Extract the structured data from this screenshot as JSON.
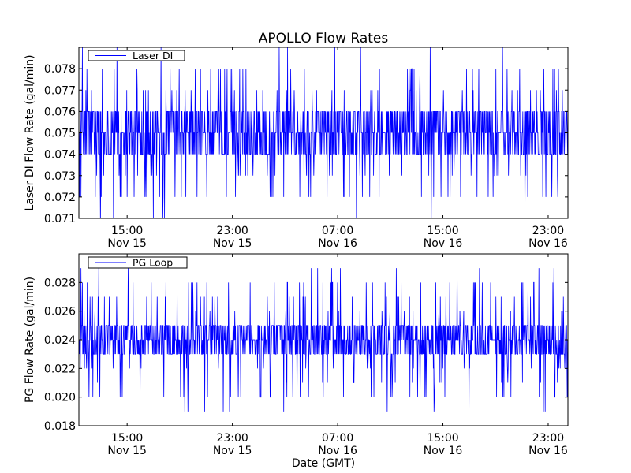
{
  "figure": {
    "title": "APOLLO Flow Rates",
    "xlabel": "Date (GMT)"
  },
  "chart_data": [
    {
      "type": "line",
      "title": "APOLLO Flow Rates",
      "ylabel": "Laser DI Flow Rate (gal/min)",
      "xlabel": "",
      "x_ticks": [
        {
          "time": "15:00",
          "date": "Nov 15"
        },
        {
          "time": "23:00",
          "date": "Nov 15"
        },
        {
          "time": "07:00",
          "date": "Nov 16"
        },
        {
          "time": "15:00",
          "date": "Nov 16"
        },
        {
          "time": "23:00",
          "date": "Nov 16"
        }
      ],
      "xlim": [
        "Nov 15 11:20",
        "Nov 17 00:30"
      ],
      "ylim": [
        0.071,
        0.079
      ],
      "y_ticks": [
        "0.071",
        "0.072",
        "0.073",
        "0.074",
        "0.075",
        "0.076",
        "0.077",
        "0.078"
      ],
      "legend": {
        "placement": "top-left",
        "entries": [
          "Laser DI"
        ]
      },
      "grid": false,
      "series": [
        {
          "name": "Laser DI",
          "color": "#0000ff",
          "typical_range": [
            0.075,
            0.076
          ],
          "frequent_values": [
            0.074,
            0.075,
            0.076
          ],
          "occasional_values": [
            0.072,
            0.073,
            0.077,
            0.078
          ],
          "extreme_values": [
            0.071,
            0.079
          ],
          "quantization": 0.001
        }
      ]
    },
    {
      "type": "line",
      "title": "",
      "ylabel": "PG Flow Rate (gal/min)",
      "xlabel": "Date (GMT)",
      "x_ticks": [
        {
          "time": "15:00",
          "date": "Nov 15"
        },
        {
          "time": "23:00",
          "date": "Nov 15"
        },
        {
          "time": "07:00",
          "date": "Nov 16"
        },
        {
          "time": "15:00",
          "date": "Nov 16"
        },
        {
          "time": "23:00",
          "date": "Nov 16"
        }
      ],
      "xlim": [
        "Nov 15 11:20",
        "Nov 17 00:30"
      ],
      "ylim": [
        0.018,
        0.03
      ],
      "y_ticks": [
        "0.018",
        "0.020",
        "0.022",
        "0.024",
        "0.026",
        "0.028"
      ],
      "legend": {
        "placement": "top-left",
        "entries": [
          "PG Loop"
        ]
      },
      "grid": false,
      "series": [
        {
          "name": "PG Loop",
          "color": "#0000ff",
          "typical_range": [
            0.023,
            0.025
          ],
          "frequent_values": [
            0.023,
            0.024,
            0.025
          ],
          "occasional_values": [
            0.02,
            0.021,
            0.022,
            0.026,
            0.027,
            0.028
          ],
          "extreme_values": [
            0.019,
            0.029
          ],
          "quantization": 0.001
        }
      ]
    }
  ]
}
